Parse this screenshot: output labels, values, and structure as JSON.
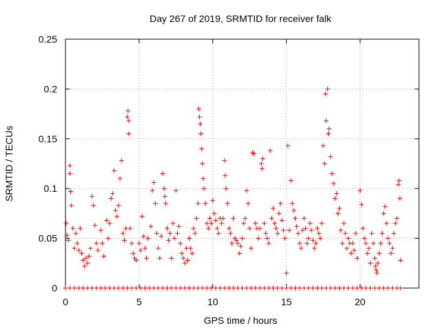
{
  "chart_data": {
    "type": "scatter",
    "title": "Day 267 of 2019, SRMTID for receiver falk",
    "xlabel": "GPS time / hours",
    "ylabel": "SRMTID / TECUs",
    "xlim": [
      0,
      24
    ],
    "ylim": [
      0,
      0.25
    ],
    "x_ticks": [
      0,
      5,
      10,
      15,
      20
    ],
    "y_ticks": [
      0,
      0.05,
      0.1,
      0.15,
      0.2,
      0.25
    ],
    "x_tick_labels": [
      "0",
      "5",
      "10",
      "15",
      "20"
    ],
    "y_tick_labels": [
      "0",
      "0.05",
      "0.1",
      "0.15",
      "0.2",
      "0.25"
    ],
    "grid": true,
    "marker": "+",
    "color": "#ff0000",
    "series": [
      {
        "name": "SRMTID",
        "points": [
          [
            0.05,
            0.065
          ],
          [
            0.1,
            0.053
          ],
          [
            0.2,
            0.048
          ],
          [
            0.3,
            0.123
          ],
          [
            0.3,
            0.115
          ],
          [
            0.35,
            0.097
          ],
          [
            0.4,
            0.083
          ],
          [
            0.5,
            0.06
          ],
          [
            0.6,
            0.04
          ],
          [
            0.7,
            0.055
          ],
          [
            0.8,
            0.045
          ],
          [
            0.9,
            0.038
          ],
          [
            1.0,
            0.06
          ],
          [
            1.1,
            0.035
          ],
          [
            1.2,
            0.028
          ],
          [
            1.3,
            0.022
          ],
          [
            1.4,
            0.03
          ],
          [
            1.5,
            0.025
          ],
          [
            1.6,
            0.032
          ],
          [
            1.7,
            0.04
          ],
          [
            1.8,
            0.092
          ],
          [
            1.9,
            0.083
          ],
          [
            2.0,
            0.063
          ],
          [
            2.1,
            0.045
          ],
          [
            2.2,
            0.038
          ],
          [
            2.4,
            0.058
          ],
          [
            2.5,
            0.045
          ],
          [
            2.6,
            0.032
          ],
          [
            2.8,
            0.068
          ],
          [
            2.9,
            0.05
          ],
          [
            3.0,
            0.065
          ],
          [
            3.1,
            0.09
          ],
          [
            3.2,
            0.095
          ],
          [
            3.3,
            0.118
          ],
          [
            3.4,
            0.078
          ],
          [
            3.5,
            0.072
          ],
          [
            3.6,
            0.083
          ],
          [
            3.7,
            0.11
          ],
          [
            3.8,
            0.128
          ],
          [
            3.9,
            0.055
          ],
          [
            4.0,
            0.048
          ],
          [
            4.1,
            0.06
          ],
          [
            4.2,
            0.172
          ],
          [
            4.25,
            0.178
          ],
          [
            4.3,
            0.168
          ],
          [
            4.3,
            0.155
          ],
          [
            4.4,
            0.06
          ],
          [
            4.5,
            0.045
          ],
          [
            4.6,
            0.035
          ],
          [
            4.7,
            0.03
          ],
          [
            4.8,
            0.028
          ],
          [
            5.0,
            0.045
          ],
          [
            5.1,
            0.038
          ],
          [
            5.2,
            0.072
          ],
          [
            5.3,
            0.052
          ],
          [
            5.4,
            0.04
          ],
          [
            5.5,
            0.03
          ],
          [
            5.6,
            0.05
          ],
          [
            5.8,
            0.062
          ],
          [
            5.9,
            0.098
          ],
          [
            6.0,
            0.106
          ],
          [
            6.1,
            0.085
          ],
          [
            6.2,
            0.055
          ],
          [
            6.3,
            0.04
          ],
          [
            6.4,
            0.03
          ],
          [
            6.5,
            0.052
          ],
          [
            6.6,
            0.115
          ],
          [
            6.7,
            0.1
          ],
          [
            6.75,
            0.092
          ],
          [
            6.8,
            0.085
          ],
          [
            6.9,
            0.06
          ],
          [
            7.0,
            0.048
          ],
          [
            7.1,
            0.055
          ],
          [
            7.2,
            0.03
          ],
          [
            7.3,
            0.065
          ],
          [
            7.4,
            0.05
          ],
          [
            7.5,
            0.098
          ],
          [
            7.6,
            0.055
          ],
          [
            7.7,
            0.062
          ],
          [
            7.8,
            0.045
          ],
          [
            7.9,
            0.035
          ],
          [
            8.0,
            0.03
          ],
          [
            8.1,
            0.025
          ],
          [
            8.2,
            0.04
          ],
          [
            8.3,
            0.028
          ],
          [
            8.4,
            0.05
          ],
          [
            8.5,
            0.04
          ],
          [
            8.6,
            0.035
          ],
          [
            8.7,
            0.06
          ],
          [
            8.8,
            0.055
          ],
          [
            8.9,
            0.07
          ],
          [
            9.0,
            0.085
          ],
          [
            9.05,
            0.18
          ],
          [
            9.1,
            0.172
          ],
          [
            9.15,
            0.165
          ],
          [
            9.2,
            0.155
          ],
          [
            9.25,
            0.14
          ],
          [
            9.3,
            0.125
          ],
          [
            9.35,
            0.11
          ],
          [
            9.4,
            0.1
          ],
          [
            9.5,
            0.085
          ],
          [
            9.6,
            0.065
          ],
          [
            9.7,
            0.06
          ],
          [
            9.8,
            0.07
          ],
          [
            9.9,
            0.065
          ],
          [
            10.0,
            0.088
          ],
          [
            10.1,
            0.075
          ],
          [
            10.2,
            0.068
          ],
          [
            10.3,
            0.06
          ],
          [
            10.4,
            0.055
          ],
          [
            10.5,
            0.07
          ],
          [
            10.6,
            0.065
          ],
          [
            10.7,
            0.07
          ],
          [
            10.8,
            0.128
          ],
          [
            10.85,
            0.113
          ],
          [
            10.9,
            0.1
          ],
          [
            11.0,
            0.085
          ],
          [
            11.1,
            0.06
          ],
          [
            11.2,
            0.055
          ],
          [
            11.3,
            0.045
          ],
          [
            11.4,
            0.07
          ],
          [
            11.5,
            0.05
          ],
          [
            11.6,
            0.048
          ],
          [
            11.7,
            0.045
          ],
          [
            11.8,
            0.035
          ],
          [
            11.9,
            0.042
          ],
          [
            12.0,
            0.05
          ],
          [
            12.1,
            0.065
          ],
          [
            12.2,
            0.07
          ],
          [
            12.3,
            0.098
          ],
          [
            12.4,
            0.085
          ],
          [
            12.5,
            0.06
          ],
          [
            12.6,
            0.04
          ],
          [
            12.7,
            0.136
          ],
          [
            12.8,
            0.135
          ],
          [
            12.9,
            0.065
          ],
          [
            13.0,
            0.06
          ],
          [
            13.1,
            0.05
          ],
          [
            13.2,
            0.06
          ],
          [
            13.3,
            0.125
          ],
          [
            13.35,
            0.12
          ],
          [
            13.4,
            0.13
          ],
          [
            13.5,
            0.065
          ],
          [
            13.6,
            0.055
          ],
          [
            13.7,
            0.05
          ],
          [
            13.8,
            0.045
          ],
          [
            13.9,
            0.138
          ],
          [
            14.0,
            0.07
          ],
          [
            14.1,
            0.08
          ],
          [
            14.2,
            0.065
          ],
          [
            14.3,
            0.06
          ],
          [
            14.4,
            0.055
          ],
          [
            14.5,
            0.075
          ],
          [
            14.6,
            0.085
          ],
          [
            14.7,
            0.068
          ],
          [
            14.8,
            0.058
          ],
          [
            14.9,
            0.05
          ],
          [
            15.0,
            0.015
          ],
          [
            15.1,
            0.143
          ],
          [
            15.2,
            0.058
          ],
          [
            15.3,
            0.108
          ],
          [
            15.4,
            0.085
          ],
          [
            15.5,
            0.078
          ],
          [
            15.6,
            0.07
          ],
          [
            15.7,
            0.062
          ],
          [
            15.8,
            0.055
          ],
          [
            15.9,
            0.045
          ],
          [
            16.0,
            0.04
          ],
          [
            16.1,
            0.058
          ],
          [
            16.2,
            0.07
          ],
          [
            16.3,
            0.06
          ],
          [
            16.4,
            0.045
          ],
          [
            16.5,
            0.05
          ],
          [
            16.6,
            0.065
          ],
          [
            16.7,
            0.058
          ],
          [
            16.8,
            0.048
          ],
          [
            16.9,
            0.04
          ],
          [
            17.0,
            0.045
          ],
          [
            17.1,
            0.06
          ],
          [
            17.2,
            0.055
          ],
          [
            17.3,
            0.05
          ],
          [
            17.4,
            0.065
          ],
          [
            17.5,
            0.143
          ],
          [
            17.6,
            0.125
          ],
          [
            17.65,
            0.195
          ],
          [
            17.7,
            0.168
          ],
          [
            17.8,
            0.2
          ],
          [
            17.85,
            0.155
          ],
          [
            17.9,
            0.16
          ],
          [
            18.0,
            0.132
          ],
          [
            18.1,
            0.115
          ],
          [
            18.2,
            0.105
          ],
          [
            18.3,
            0.09
          ],
          [
            18.4,
            0.095
          ],
          [
            18.5,
            0.075
          ],
          [
            18.6,
            0.08
          ],
          [
            18.7,
            0.058
          ],
          [
            18.8,
            0.045
          ],
          [
            18.9,
            0.065
          ],
          [
            19.0,
            0.055
          ],
          [
            19.1,
            0.04
          ],
          [
            19.2,
            0.05
          ],
          [
            19.3,
            0.045
          ],
          [
            19.4,
            0.035
          ],
          [
            19.5,
            0.045
          ],
          [
            19.6,
            0.038
          ],
          [
            19.7,
            0.055
          ],
          [
            19.8,
            0.03
          ],
          [
            20.0,
            0.098
          ],
          [
            20.1,
            0.084
          ],
          [
            20.2,
            0.06
          ],
          [
            20.3,
            0.05
          ],
          [
            20.4,
            0.045
          ],
          [
            20.5,
            0.035
          ],
          [
            20.6,
            0.04
          ],
          [
            20.7,
            0.025
          ],
          [
            20.8,
            0.055
          ],
          [
            20.9,
            0.045
          ],
          [
            21.0,
            0.03
          ],
          [
            21.05,
            0.022
          ],
          [
            21.1,
            0.018
          ],
          [
            21.15,
            0.015
          ],
          [
            21.2,
            0.025
          ],
          [
            21.3,
            0.035
          ],
          [
            21.4,
            0.045
          ],
          [
            21.5,
            0.055
          ],
          [
            21.6,
            0.075
          ],
          [
            21.7,
            0.082
          ],
          [
            21.8,
            0.065
          ],
          [
            21.9,
            0.05
          ],
          [
            22.0,
            0.045
          ],
          [
            22.1,
            0.035
          ],
          [
            22.2,
            0.04
          ],
          [
            22.3,
            0.055
          ],
          [
            22.4,
            0.065
          ],
          [
            22.5,
            0.07
          ],
          [
            22.6,
            0.104
          ],
          [
            22.65,
            0.108
          ],
          [
            22.7,
            0.09
          ],
          [
            22.75,
            0.028
          ],
          [
            0,
            0
          ],
          [
            0.3,
            0
          ],
          [
            0.6,
            0
          ],
          [
            0.9,
            0
          ],
          [
            1.2,
            0
          ],
          [
            1.5,
            0
          ],
          [
            1.8,
            0
          ],
          [
            2.1,
            0
          ],
          [
            2.4,
            0
          ],
          [
            2.7,
            0
          ],
          [
            3.0,
            0
          ],
          [
            3.3,
            0
          ],
          [
            3.6,
            0
          ],
          [
            3.9,
            0
          ],
          [
            4.2,
            0
          ],
          [
            4.5,
            0
          ],
          [
            4.8,
            0
          ],
          [
            5.1,
            0
          ],
          [
            5.4,
            0
          ],
          [
            5.7,
            0
          ],
          [
            6.0,
            0
          ],
          [
            6.3,
            0
          ],
          [
            6.6,
            0
          ],
          [
            6.9,
            0
          ],
          [
            7.2,
            0
          ],
          [
            7.5,
            0
          ],
          [
            7.8,
            0
          ],
          [
            8.1,
            0
          ],
          [
            8.4,
            0
          ],
          [
            8.7,
            0
          ],
          [
            9.0,
            0
          ],
          [
            9.3,
            0
          ],
          [
            9.6,
            0
          ],
          [
            9.9,
            0
          ],
          [
            10.2,
            0
          ],
          [
            10.5,
            0
          ],
          [
            10.8,
            0
          ],
          [
            11.1,
            0
          ],
          [
            11.4,
            0
          ],
          [
            11.7,
            0
          ],
          [
            12.0,
            0
          ],
          [
            12.3,
            0
          ],
          [
            12.6,
            0
          ],
          [
            12.9,
            0
          ],
          [
            13.2,
            0
          ],
          [
            13.5,
            0
          ],
          [
            13.8,
            0
          ],
          [
            14.1,
            0
          ],
          [
            14.4,
            0
          ],
          [
            14.7,
            0
          ],
          [
            15.0,
            0
          ],
          [
            15.3,
            0
          ],
          [
            15.6,
            0
          ],
          [
            15.9,
            0
          ],
          [
            16.2,
            0
          ],
          [
            16.5,
            0
          ],
          [
            16.8,
            0
          ],
          [
            17.1,
            0
          ],
          [
            17.4,
            0
          ],
          [
            17.7,
            0
          ],
          [
            18.0,
            0
          ],
          [
            18.3,
            0
          ],
          [
            18.6,
            0
          ],
          [
            18.9,
            0
          ],
          [
            19.2,
            0
          ],
          [
            19.5,
            0
          ],
          [
            19.8,
            0
          ],
          [
            20.1,
            0
          ],
          [
            20.4,
            0
          ],
          [
            20.7,
            0
          ],
          [
            21.0,
            0
          ],
          [
            21.3,
            0
          ],
          [
            21.6,
            0
          ],
          [
            21.9,
            0
          ],
          [
            22.2,
            0
          ],
          [
            22.5,
            0
          ],
          [
            22.75,
            0
          ]
        ]
      }
    ]
  }
}
